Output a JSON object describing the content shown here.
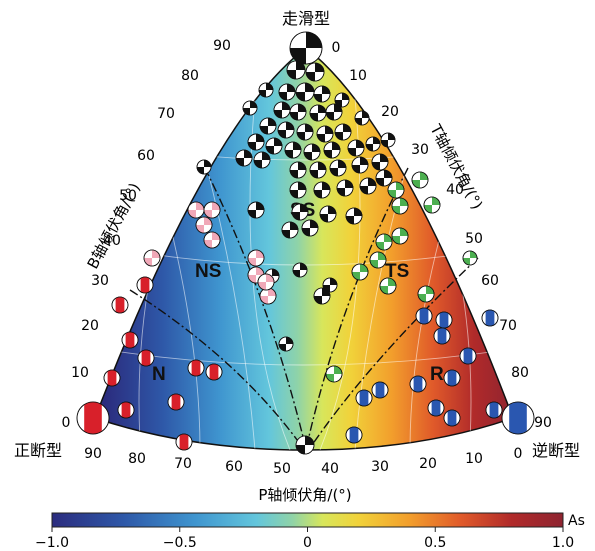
{
  "corners": {
    "top": "走滑型",
    "left": "正断型",
    "right": "逆断型"
  },
  "axes": {
    "b_title": "B轴倾伏角/(°)",
    "t_title": "T轴倾伏角/(°)",
    "p_title": "P轴倾伏角/(°)",
    "b_ticks": [
      "0",
      "10",
      "20",
      "30",
      "40",
      "50",
      "60",
      "70",
      "80",
      "90"
    ],
    "t_ticks": [
      "0",
      "10",
      "20",
      "30",
      "40",
      "50",
      "60",
      "70",
      "80",
      "90"
    ],
    "p_ticks": [
      "0",
      "10",
      "20",
      "30",
      "40",
      "50",
      "60",
      "70",
      "80",
      "90"
    ]
  },
  "regions": {
    "ss": "SS",
    "ns": "NS",
    "ts": "TS",
    "n": "N",
    "r": "R"
  },
  "colorbar": {
    "label": "As",
    "min": -1.0,
    "max": 1.0,
    "ticks": [
      "−1.0",
      "−0.5",
      "0",
      "0.5",
      "1.0"
    ],
    "stops": [
      "#2b2c7e",
      "#2e58a8",
      "#3f95cf",
      "#63c6dc",
      "#8fd3a8",
      "#d8e65b",
      "#f1d23a",
      "#f29e2c",
      "#e05a2a",
      "#b02a2a",
      "#8e2430"
    ]
  },
  "point_colors": {
    "strike_slip": "#111111",
    "normal": "#d8202a",
    "reverse": "#2a57b0",
    "normal_strike": "#f0a8b8",
    "thrust_strike": "#4caf50"
  }
}
